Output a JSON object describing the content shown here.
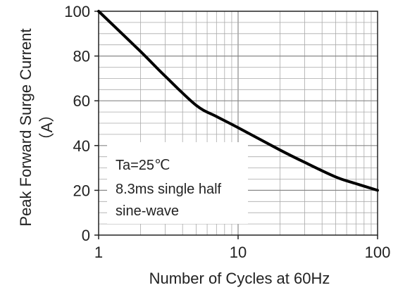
{
  "chart_data": {
    "type": "line",
    "xscale": "log",
    "xlim": [
      1,
      100
    ],
    "ylim": [
      0,
      100
    ],
    "x_ticks": [
      1,
      10,
      100
    ],
    "x_tick_labels": [
      "1",
      "10",
      "100"
    ],
    "y_ticks": [
      0,
      20,
      40,
      60,
      80,
      100
    ],
    "y_tick_labels": [
      "0",
      "20",
      "40",
      "60",
      "80",
      "100"
    ],
    "xlabel": "Number of Cycles at 60Hz",
    "ylabel_line1": "Peak Forward Surge Current",
    "ylabel_line2": "（A）",
    "grid": true,
    "series": [
      {
        "x": [
          1,
          2,
          3,
          5,
          7,
          10,
          20,
          30,
          50,
          70,
          100
        ],
        "y": [
          100,
          82,
          71,
          58,
          53,
          48,
          38,
          32.5,
          26,
          23,
          20
        ]
      }
    ],
    "annotation": {
      "lines": [
        "Ta=25℃",
        "8.3ms single half",
        "sine-wave"
      ]
    },
    "colors": {
      "line": "#000000",
      "grid": "#aaaaaa",
      "axis": "#222222"
    }
  }
}
